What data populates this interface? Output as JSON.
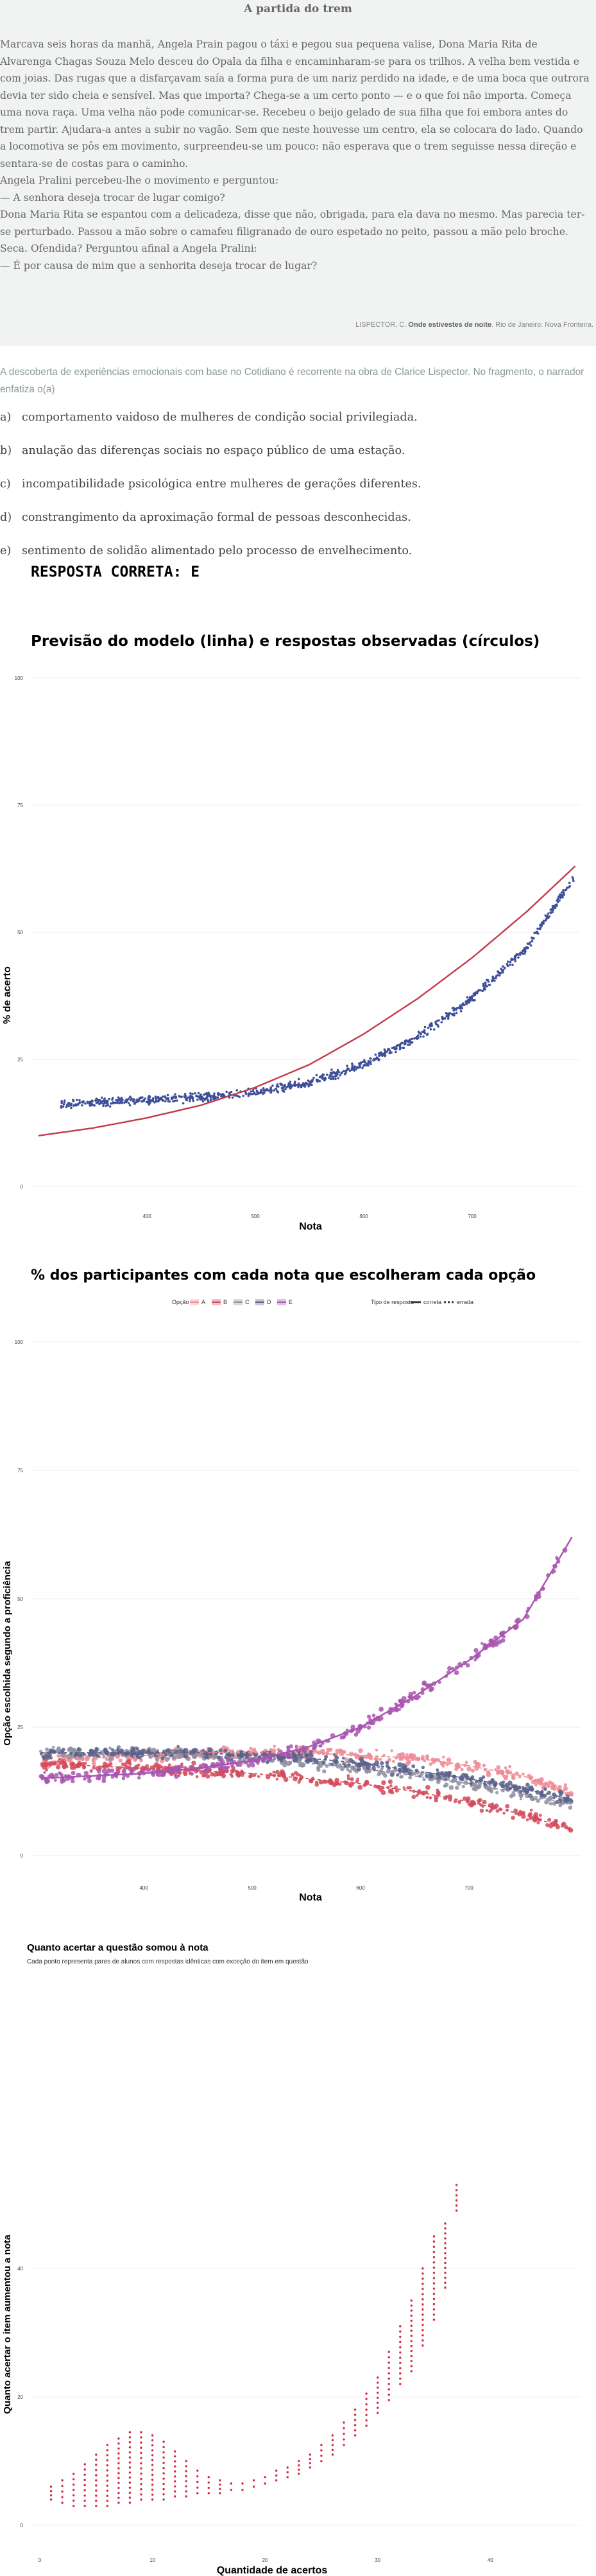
{
  "passage": {
    "title": "A partida do trem",
    "paragraphs": [
      "Marcava seis horas da manhã, Angela Prain pagou o táxi e pegou sua pequena valise, Dona Maria Rita de Alvarenga Chagas Souza Melo desceu do Opala da filha e encaminharam-se para os trilhos. A velha bem vestida e com joias. Das rugas que a disfarçavam saía a forma pura de um nariz perdido na idade, e de uma boca que outrora devia ter sido cheia e sensível. Mas que importa? Chega-se a um certo ponto — e o que foi não importa. Começa uma nova raça. Uma velha não pode comunicar-se. Recebeu o beijo gelado de sua filha que foi embora antes do trem partir. Ajudara-a antes a subir no vagão. Sem que neste houvesse um centro, ela se colocara do lado. Quando a locomotiva se pôs em movimento, surpreendeu-se um pouco: não esperava que o trem seguisse nessa direção e sentara-se de costas para o caminho.",
      "Angela Pralini percebeu-lhe o movimento e perguntou:",
      "— A senhora deseja trocar de lugar comigo?",
      "Dona Maria Rita se espantou com a delicadeza, disse que não, obrigada, para ela dava no mesmo. Mas parecia ter-se perturbado. Passou a mão sobre o camafeu filigranado de ouro espetado no peito, passou a mão pelo broche. Seca. Ofendida? Perguntou afinal a Angela Pralini:",
      "— É por causa de mim que a senhorita deseja trocar de lugar?"
    ],
    "source_prefix": "LISPECTOR, C. ",
    "source_title": "Onde estivestes de noite",
    "source_suffix": ". Rio de Janeiro: Nova Fronteira."
  },
  "question": {
    "stem": "A descoberta de experiências emocionais com base no Cotidiano é recorrente na obra de Clarice Lispector. No fragmento, o narrador enfatiza o(a)",
    "options": [
      {
        "letter": "a)",
        "text": "comportamento vaidoso de mulheres de condição social privilegiada."
      },
      {
        "letter": "b)",
        "text": "anulação das diferenças sociais no espaço público de uma estação."
      },
      {
        "letter": "c)",
        "text": "incompatibilidade psicológica entre mulheres de gerações diferentes."
      },
      {
        "letter": "d)",
        "text": "constrangimento da aproximação formal de pessoas desconhecidas."
      },
      {
        "letter": "e)",
        "text": "sentimento de solidão alimentado pelo processo de envelhecimento."
      }
    ],
    "answer": "RESPOSTA CORRETA: E"
  },
  "colors": {
    "model": "#c23b4a",
    "observed": "#3e4f98",
    "A": "#ed8b95",
    "B": "#d24a5c",
    "C": "#8f8fa0",
    "D": "#596089",
    "E": "#a855b0",
    "gain": "#d22a40"
  },
  "chart_data": [
    {
      "type": "scatter",
      "title": "Previsão do modelo (linha) e respostas observadas (círculos)",
      "xlabel": "Nota",
      "ylabel": "% de acerto",
      "xlim": [
        300,
        800
      ],
      "ylim": [
        0,
        100
      ],
      "xticks": [
        400,
        500,
        600,
        700
      ],
      "xtick_labels": [
        "400",
        "500",
        "600",
        "700"
      ],
      "yticks": [
        0,
        25,
        50,
        75,
        100
      ],
      "ytick_labels": [
        "0",
        "25",
        "50",
        "75",
        "100"
      ],
      "series": [
        {
          "kind": "line",
          "x": [
            300,
            350,
            400,
            450,
            500,
            550,
            600,
            650,
            700,
            750,
            795
          ],
          "values": [
            10,
            11.5,
            13.5,
            16,
            19.5,
            24,
            30,
            37,
            45,
            54,
            63
          ]
        },
        {
          "kind": "points",
          "x": [
            300,
            350,
            400,
            450,
            500,
            550,
            600,
            650,
            700,
            750,
            795
          ],
          "values": [
            16,
            16.5,
            17,
            17.5,
            18.5,
            20.5,
            24,
            29.5,
            37,
            47,
            61
          ]
        }
      ]
    },
    {
      "type": "scatter",
      "title": "% dos participantes com cada nota que escolheram cada opção",
      "legend_option_title": "Opção",
      "legend_type_title": "Tipo de resposta",
      "legend_type_items": [
        "correta",
        "errada"
      ],
      "xlabel": "Nota",
      "ylabel": "Opção escolhida segundo a proficiência",
      "xlim": [
        300,
        800
      ],
      "ylim": [
        0,
        100
      ],
      "xticks": [
        400,
        500,
        600,
        700
      ],
      "xtick_labels": [
        "400",
        "500",
        "600",
        "700"
      ],
      "yticks": [
        0,
        25,
        50,
        75,
        100
      ],
      "ytick_labels": [
        "0",
        "25",
        "50",
        "75",
        "100"
      ],
      "series": [
        {
          "name": "A",
          "x": [
            300,
            350,
            400,
            450,
            500,
            550,
            600,
            650,
            700,
            750,
            795
          ],
          "values": [
            18,
            19,
            19.5,
            20,
            20,
            20,
            19.5,
            19,
            17.5,
            15.5,
            12
          ]
        },
        {
          "name": "B",
          "x": [
            300,
            350,
            400,
            450,
            500,
            550,
            600,
            650,
            700,
            750,
            795
          ],
          "values": [
            18,
            17.5,
            17,
            16.5,
            16,
            15,
            14,
            12.5,
            10.5,
            8,
            5
          ]
        },
        {
          "name": "C",
          "x": [
            300,
            350,
            400,
            450,
            500,
            550,
            600,
            650,
            700,
            750,
            795
          ],
          "values": [
            20,
            20,
            20,
            19.5,
            19,
            18,
            17,
            15.5,
            14,
            12,
            10
          ]
        },
        {
          "name": "D",
          "x": [
            300,
            350,
            400,
            450,
            500,
            550,
            600,
            650,
            700,
            750,
            795
          ],
          "values": [
            20,
            20,
            20,
            20,
            19.5,
            19,
            18,
            16.5,
            15,
            13,
            11
          ]
        },
        {
          "name": "E",
          "x": [
            300,
            350,
            400,
            450,
            500,
            550,
            600,
            650,
            700,
            750,
            795
          ],
          "values": [
            15,
            15.5,
            16,
            17,
            18.5,
            21,
            25,
            31,
            38,
            46,
            62
          ]
        }
      ]
    },
    {
      "type": "scatter",
      "title": "Quanto acertar a questão somou à nota",
      "subtitle": "Cada ponto representa pares de alunos com respostas idênticas com exceção do item em questão",
      "xlabel": "Quantidade de acertos",
      "ylabel": "Quanto acertar o item aumentou a nota",
      "xlim": [
        0,
        45
      ],
      "ylim": [
        0,
        60
      ],
      "xticks": [
        0,
        10,
        20,
        30,
        40
      ],
      "xtick_labels": [
        "0",
        "10",
        "20",
        "30",
        "40"
      ],
      "yticks": [
        0,
        20,
        40
      ],
      "ytick_labels": [
        "0",
        "20",
        "40"
      ],
      "columns": [
        {
          "x": 1,
          "ymin": 4,
          "ymax": 6
        },
        {
          "x": 2,
          "ymin": 3.5,
          "ymax": 7
        },
        {
          "x": 3,
          "ymin": 3,
          "ymax": 8
        },
        {
          "x": 4,
          "ymin": 3,
          "ymax": 9.5
        },
        {
          "x": 5,
          "ymin": 3,
          "ymax": 11
        },
        {
          "x": 6,
          "ymin": 3,
          "ymax": 12.5
        },
        {
          "x": 7,
          "ymin": 3.5,
          "ymax": 13.5
        },
        {
          "x": 8,
          "ymin": 3.5,
          "ymax": 14.5
        },
        {
          "x": 9,
          "ymin": 4,
          "ymax": 14.5
        },
        {
          "x": 10,
          "ymin": 4,
          "ymax": 14
        },
        {
          "x": 11,
          "ymin": 4,
          "ymax": 13
        },
        {
          "x": 12,
          "ymin": 4.5,
          "ymax": 11.5
        },
        {
          "x": 13,
          "ymin": 4.5,
          "ymax": 10
        },
        {
          "x": 14,
          "ymin": 5,
          "ymax": 8.5
        },
        {
          "x": 15,
          "ymin": 5,
          "ymax": 7.5
        },
        {
          "x": 16,
          "ymin": 5,
          "ymax": 7
        },
        {
          "x": 17,
          "ymin": 5.5,
          "ymax": 6.5
        },
        {
          "x": 18,
          "ymin": 5.5,
          "ymax": 6.5
        },
        {
          "x": 19,
          "ymin": 6,
          "ymax": 7
        },
        {
          "x": 20,
          "ymin": 6.5,
          "ymax": 7.5
        },
        {
          "x": 21,
          "ymin": 7,
          "ymax": 8.5
        },
        {
          "x": 22,
          "ymin": 7.5,
          "ymax": 9
        },
        {
          "x": 23,
          "ymin": 8,
          "ymax": 10
        },
        {
          "x": 24,
          "ymin": 9,
          "ymax": 11
        },
        {
          "x": 25,
          "ymin": 10,
          "ymax": 12.5
        },
        {
          "x": 26,
          "ymin": 11,
          "ymax": 14
        },
        {
          "x": 27,
          "ymin": 12.5,
          "ymax": 16
        },
        {
          "x": 28,
          "ymin": 14,
          "ymax": 18
        },
        {
          "x": 29,
          "ymin": 15.5,
          "ymax": 20.5
        },
        {
          "x": 30,
          "ymin": 17.5,
          "ymax": 23
        },
        {
          "x": 31,
          "ymin": 19.5,
          "ymax": 27
        },
        {
          "x": 32,
          "ymin": 22,
          "ymax": 31
        },
        {
          "x": 33,
          "ymin": 24,
          "ymax": 35
        },
        {
          "x": 34,
          "ymin": 28,
          "ymax": 40
        },
        {
          "x": 35,
          "ymin": 32,
          "ymax": 45
        },
        {
          "x": 36,
          "ymin": 37,
          "ymax": 47
        },
        {
          "x": 37,
          "ymin": 49,
          "ymax": 53
        }
      ]
    }
  ]
}
